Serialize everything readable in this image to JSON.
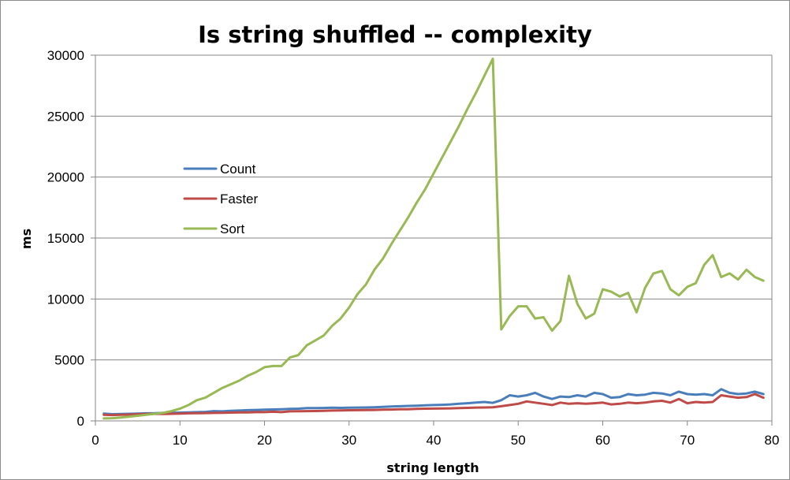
{
  "chart_data": {
    "type": "line",
    "title": "Is string shuffled -- complexity",
    "xlabel": "string length",
    "ylabel": "ms",
    "xlim": [
      0,
      80
    ],
    "ylim": [
      0,
      30000
    ],
    "xticks": [
      "0",
      "10",
      "20",
      "30",
      "40",
      "50",
      "60",
      "70",
      "80"
    ],
    "yticks": [
      "0",
      "5000",
      "10000",
      "15000",
      "20000",
      "25000",
      "30000"
    ],
    "grid": "horizontal",
    "legend_position": "left",
    "series": [
      {
        "name": "Count",
        "color": "#4a7ebb",
        "x": [
          1,
          2,
          3,
          4,
          5,
          6,
          7,
          8,
          9,
          10,
          11,
          12,
          13,
          14,
          15,
          16,
          17,
          18,
          19,
          20,
          21,
          22,
          23,
          24,
          25,
          26,
          27,
          28,
          29,
          30,
          31,
          32,
          33,
          34,
          35,
          36,
          37,
          38,
          39,
          40,
          41,
          42,
          43,
          44,
          45,
          46,
          47,
          48,
          49,
          50,
          51,
          52,
          53,
          54,
          55,
          56,
          57,
          58,
          59,
          60,
          61,
          62,
          63,
          64,
          65,
          66,
          67,
          68,
          69,
          70,
          71,
          72,
          73,
          74,
          75,
          76,
          77,
          78,
          79
        ],
        "values": [
          600,
          550,
          560,
          580,
          600,
          620,
          630,
          650,
          660,
          680,
          700,
          720,
          740,
          800,
          780,
          820,
          850,
          880,
          900,
          920,
          940,
          960,
          980,
          1000,
          1050,
          1050,
          1060,
          1080,
          1070,
          1080,
          1090,
          1100,
          1120,
          1150,
          1180,
          1200,
          1230,
          1250,
          1280,
          1300,
          1320,
          1350,
          1400,
          1450,
          1500,
          1550,
          1480,
          1700,
          2100,
          2000,
          2100,
          2300,
          2000,
          1800,
          2000,
          1950,
          2100,
          2000,
          2300,
          2200,
          1900,
          1950,
          2200,
          2100,
          2150,
          2300,
          2250,
          2100,
          2400,
          2200,
          2150,
          2200,
          2100,
          2600,
          2300,
          2200,
          2250,
          2400,
          2200
        ]
      },
      {
        "name": "Faster",
        "color": "#be4b48",
        "x": [
          1,
          2,
          3,
          4,
          5,
          6,
          7,
          8,
          9,
          10,
          11,
          12,
          13,
          14,
          15,
          16,
          17,
          18,
          19,
          20,
          21,
          22,
          23,
          24,
          25,
          26,
          27,
          28,
          29,
          30,
          31,
          32,
          33,
          34,
          35,
          36,
          37,
          38,
          39,
          40,
          41,
          42,
          43,
          44,
          45,
          46,
          47,
          48,
          49,
          50,
          51,
          52,
          53,
          54,
          55,
          56,
          57,
          58,
          59,
          60,
          61,
          62,
          63,
          64,
          65,
          66,
          67,
          68,
          69,
          70,
          71,
          72,
          73,
          74,
          75,
          76,
          77,
          78,
          79
        ],
        "values": [
          500,
          480,
          500,
          520,
          540,
          560,
          580,
          570,
          580,
          600,
          620,
          630,
          640,
          650,
          660,
          680,
          700,
          700,
          720,
          720,
          750,
          720,
          780,
          790,
          800,
          810,
          830,
          850,
          860,
          870,
          880,
          890,
          900,
          920,
          930,
          950,
          960,
          980,
          1000,
          1010,
          1020,
          1030,
          1050,
          1070,
          1090,
          1100,
          1120,
          1200,
          1300,
          1400,
          1600,
          1500,
          1400,
          1300,
          1500,
          1400,
          1450,
          1400,
          1450,
          1500,
          1350,
          1400,
          1500,
          1450,
          1500,
          1600,
          1650,
          1500,
          1800,
          1450,
          1550,
          1500,
          1550,
          2100,
          2000,
          1900,
          1950,
          2200,
          1900
        ]
      },
      {
        "name": "Sort",
        "color": "#98b954",
        "x": [
          1,
          2,
          3,
          4,
          5,
          6,
          7,
          8,
          9,
          10,
          11,
          12,
          13,
          14,
          15,
          16,
          17,
          18,
          19,
          20,
          21,
          22,
          23,
          24,
          25,
          26,
          27,
          28,
          29,
          30,
          31,
          32,
          33,
          34,
          35,
          36,
          37,
          38,
          39,
          40,
          41,
          42,
          43,
          44,
          45,
          46,
          47,
          48,
          49,
          50,
          51,
          52,
          53,
          54,
          55,
          56,
          57,
          58,
          59,
          60,
          61,
          62,
          63,
          64,
          65,
          66,
          67,
          68,
          69,
          70,
          71,
          72,
          73,
          74,
          75,
          76,
          77,
          78,
          79
        ],
        "values": [
          200,
          220,
          280,
          350,
          420,
          500,
          580,
          650,
          800,
          1000,
          1300,
          1700,
          1900,
          2300,
          2700,
          3000,
          3300,
          3700,
          4000,
          4400,
          4500,
          4500,
          5200,
          5400,
          6200,
          6600,
          7000,
          7800,
          8400,
          9300,
          10400,
          11200,
          12400,
          13300,
          14500,
          15600,
          16700,
          17900,
          19000,
          20300,
          21600,
          22900,
          24200,
          25600,
          26900,
          28300,
          29700,
          7500,
          8600,
          9400,
          9400,
          8400,
          8500,
          7400,
          8200,
          11900,
          9600,
          8400,
          8800,
          10800,
          10600,
          10200,
          10500,
          8900,
          10900,
          12100,
          12300,
          10800,
          10300,
          11000,
          11300,
          12800,
          13600,
          11800,
          12100,
          11600,
          12400,
          11800,
          11500
        ]
      }
    ]
  }
}
